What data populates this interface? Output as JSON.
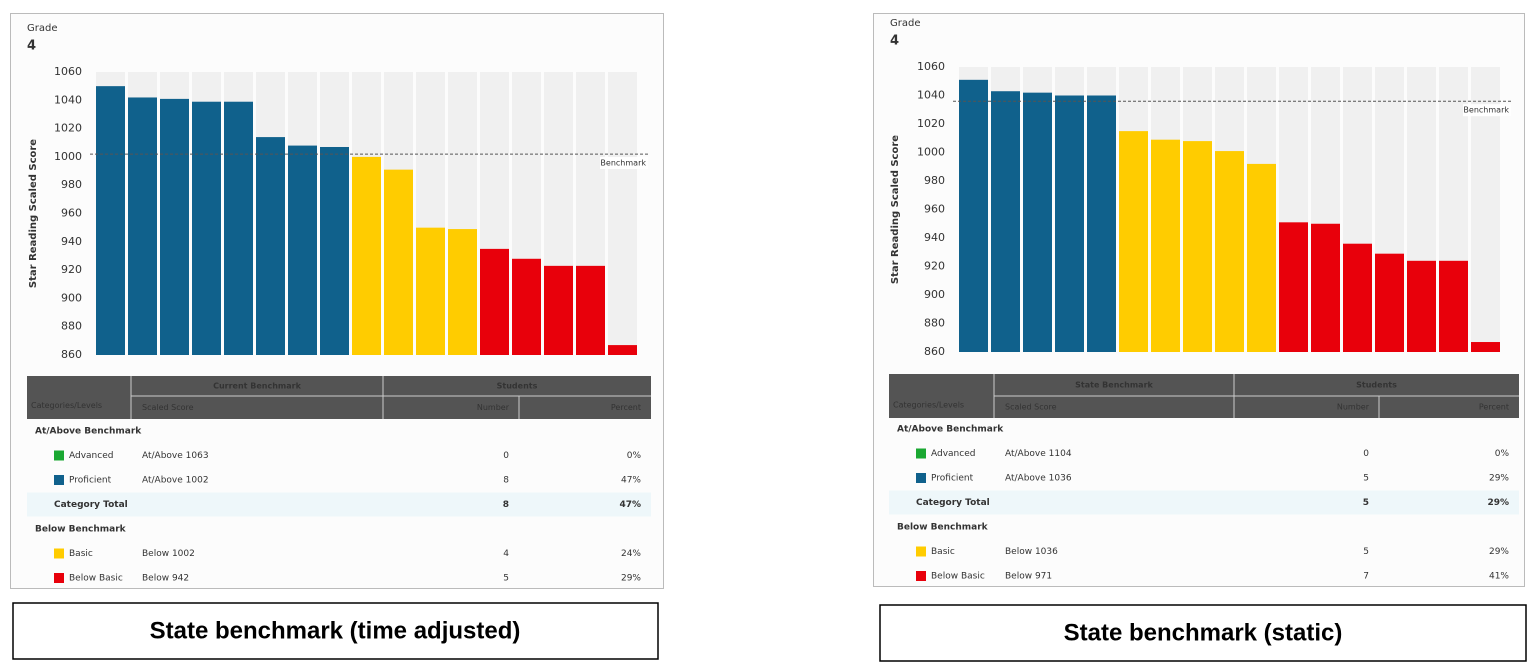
{
  "chart_data": [
    {
      "type": "bar",
      "y_label": "Star Reading Scaled Score",
      "values": [
        1050,
        1042,
        1041,
        1039,
        1039,
        1014,
        1008,
        1007,
        1000,
        991,
        950,
        949,
        935,
        928,
        923,
        923,
        867
      ],
      "colors": [
        "#10618c",
        "#10618c",
        "#10618c",
        "#10618c",
        "#10618c",
        "#10618c",
        "#10618c",
        "#10618c",
        "#ffcc00",
        "#ffcc00",
        "#ffcc00",
        "#ffcc00",
        "#e8000b",
        "#e8000b",
        "#e8000b",
        "#e8000b",
        "#e8000b"
      ],
      "ylim": [
        860,
        1060
      ],
      "yticks": [
        860,
        880,
        900,
        920,
        940,
        960,
        980,
        1000,
        1020,
        1040,
        1060
      ],
      "benchmark": {
        "value": 1002,
        "label": "Benchmark"
      }
    },
    {
      "type": "bar",
      "y_label": "Star Reading Scaled Score",
      "values": [
        1051,
        1043,
        1042,
        1040,
        1040,
        1015,
        1009,
        1008,
        1001,
        992,
        951,
        950,
        936,
        929,
        924,
        924,
        867
      ],
      "colors": [
        "#10618c",
        "#10618c",
        "#10618c",
        "#10618c",
        "#10618c",
        "#ffcc00",
        "#ffcc00",
        "#ffcc00",
        "#ffcc00",
        "#ffcc00",
        "#e8000b",
        "#e8000b",
        "#e8000b",
        "#e8000b",
        "#e8000b",
        "#e8000b",
        "#e8000b"
      ],
      "ylim": [
        860,
        1060
      ],
      "yticks": [
        860,
        880,
        900,
        920,
        940,
        960,
        980,
        1000,
        1020,
        1040,
        1060
      ],
      "benchmark": {
        "value": 1036,
        "label": "Benchmark"
      }
    }
  ],
  "panels": [
    {
      "grade_label": "Grade",
      "grade": 4,
      "caption": "State benchmark (time adjusted)",
      "table": {
        "group_headers": [
          "Current Benchmark",
          "Students"
        ],
        "columns": [
          "Categories/Levels",
          "Scaled Score",
          "Number",
          "Percent"
        ],
        "sections": [
          {
            "title": "At/Above Benchmark",
            "levels": [
              {
                "name": "Advanced",
                "color": "#1aa832",
                "score": "At/Above 1063",
                "number": 0,
                "percent": "0%"
              },
              {
                "name": "Proficient",
                "color": "#10618c",
                "score": "At/Above 1002",
                "number": 8,
                "percent": "47%"
              }
            ],
            "total": {
              "label": "Category Total",
              "number": 8,
              "percent": "47%"
            }
          },
          {
            "title": "Below Benchmark",
            "levels": [
              {
                "name": "Basic",
                "color": "#ffcc00",
                "score": "Below 1002",
                "number": 4,
                "percent": "24%"
              },
              {
                "name": "Below Basic",
                "color": "#e8000b",
                "score": "Below 942",
                "number": 5,
                "percent": "29%"
              }
            ]
          }
        ]
      }
    },
    {
      "grade_label": "Grade",
      "grade": 4,
      "caption": "State benchmark (static)",
      "table": {
        "group_headers": [
          "State Benchmark",
          "Students"
        ],
        "columns": [
          "Categories/Levels",
          "Scaled Score",
          "Number",
          "Percent"
        ],
        "sections": [
          {
            "title": "At/Above Benchmark",
            "levels": [
              {
                "name": "Advanced",
                "color": "#1aa832",
                "score": "At/Above 1104",
                "number": 0,
                "percent": "0%"
              },
              {
                "name": "Proficient",
                "color": "#10618c",
                "score": "At/Above 1036",
                "number": 5,
                "percent": "29%"
              }
            ],
            "total": {
              "label": "Category Total",
              "number": 5,
              "percent": "29%"
            }
          },
          {
            "title": "Below Benchmark",
            "levels": [
              {
                "name": "Basic",
                "color": "#ffcc00",
                "score": "Below 1036",
                "number": 5,
                "percent": "29%"
              },
              {
                "name": "Below Basic",
                "color": "#e8000b",
                "score": "Below 971",
                "number": 7,
                "percent": "41%"
              }
            ]
          }
        ]
      }
    }
  ]
}
